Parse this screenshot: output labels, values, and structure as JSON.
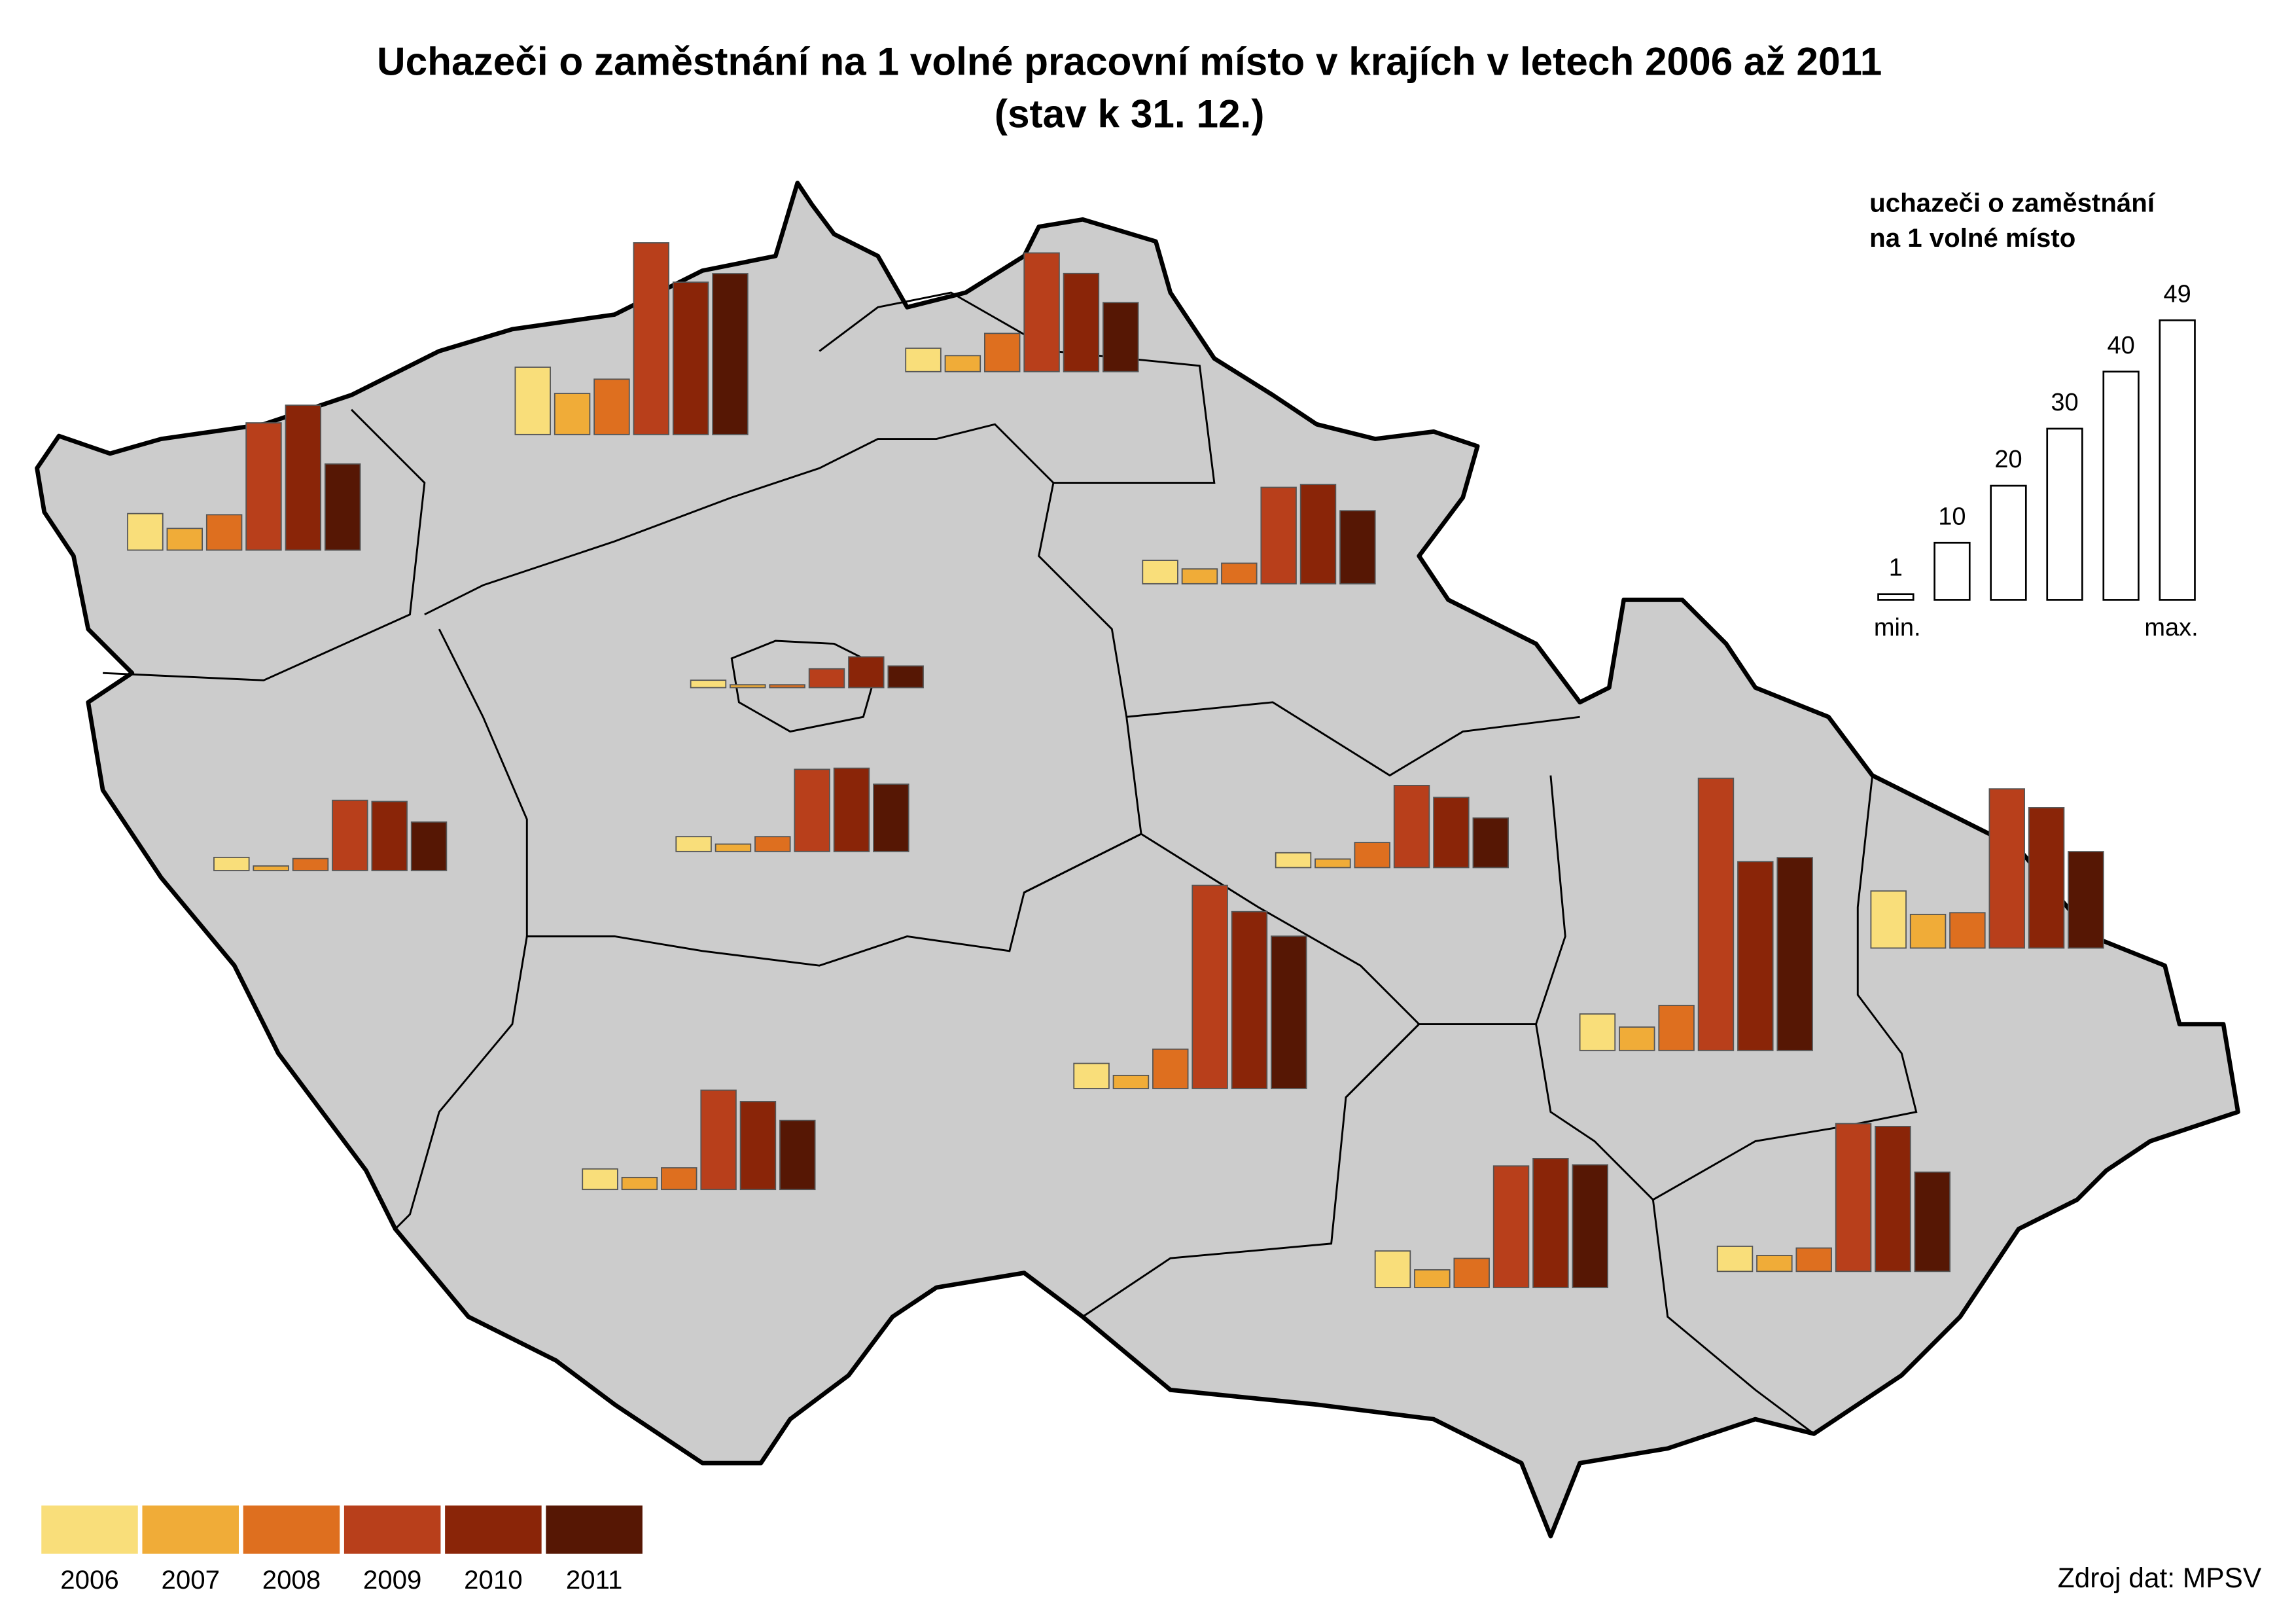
{
  "chart_data": {
    "type": "bar",
    "title": "Uchazeči o zaměstnání na 1 volné pracovní místo v krajích v letech 2006 až 2011",
    "subtitle": "(stav k 31. 12.)",
    "categories": [
      null,
      null,
      null,
      null,
      null,
      null,
      null,
      null,
      null,
      null,
      null,
      null,
      null,
      null
    ],
    "series": [
      {
        "name": "2006",
        "color": "#f9de7a",
        "values": [
          6.4,
          11.8,
          4.1,
          4.1,
          1.3,
          2.6,
          2.3,
          2.6,
          4.4,
          6.4,
          10,
          3.6,
          6.4,
          4.4
        ]
      },
      {
        "name": "2007",
        "color": "#f0ac38",
        "values": [
          3.8,
          7.2,
          2.8,
          2.6,
          0.5,
          1.3,
          0.8,
          1.5,
          2.3,
          4.1,
          5.9,
          2.1,
          3.1,
          2.8
        ]
      },
      {
        "name": "2008",
        "color": "#de6f1f",
        "values": [
          6.2,
          9.7,
          6.7,
          3.6,
          0.5,
          2.6,
          2.1,
          4.4,
          6.9,
          7.9,
          6.2,
          3.8,
          5.1,
          4.1
        ]
      },
      {
        "name": "2009",
        "color": "#b83f1b",
        "values": [
          22.3,
          33.6,
          20.8,
          16.9,
          3.3,
          14.4,
          12.3,
          14.4,
          35.6,
          47.7,
          27.9,
          17.4,
          21.3,
          25.9
        ]
      },
      {
        "name": "2010",
        "color": "#8a2508",
        "values": [
          25.4,
          26.7,
          17.2,
          17.4,
          5.4,
          14.6,
          12.1,
          12.3,
          31.0,
          33.1,
          24.6,
          15.4,
          22.6,
          25.4
        ]
      },
      {
        "name": "2011",
        "color": "#561704",
        "values": [
          15.1,
          28.2,
          12.1,
          12.8,
          3.8,
          11.8,
          8.5,
          8.7,
          26.7,
          33.8,
          16.9,
          12.1,
          21.5,
          17.4
        ]
      }
    ]
  },
  "size_legend": {
    "title": [
      "uchazeči o zaměstnání",
      "na 1 volné místo"
    ],
    "values": [
      1,
      10,
      20,
      30,
      40,
      49
    ],
    "min_label": "min.",
    "max_label": "max."
  },
  "source": "Zdroj dat: MPSV"
}
